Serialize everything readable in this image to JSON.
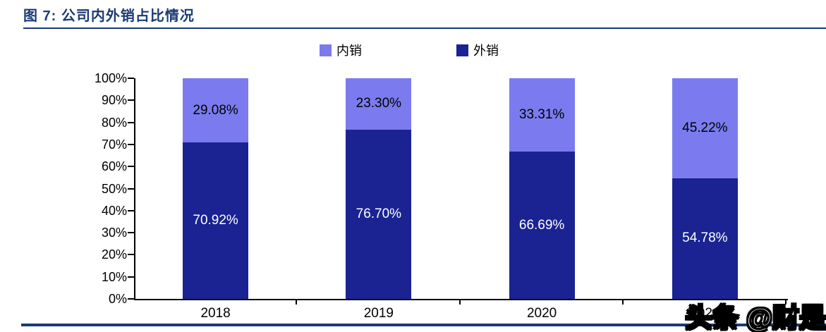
{
  "header": {
    "title": "图 7:  公司内外销占比情况"
  },
  "legend": {
    "items": [
      {
        "label": "内销",
        "color": "#7b7bef"
      },
      {
        "label": "外销",
        "color": "#1a2391"
      }
    ]
  },
  "chart_data": {
    "type": "bar",
    "stacked": true,
    "title": "公司内外销占比情况",
    "categories": [
      "2018",
      "2019",
      "2020",
      "2021"
    ],
    "series": [
      {
        "name": "外销",
        "key": "export",
        "color": "#1a2391",
        "label_color": "#ffffff",
        "values": [
          70.92,
          76.7,
          66.69,
          54.78
        ],
        "labels": [
          "70.92%",
          "76.70%",
          "66.69%",
          "54.78%"
        ]
      },
      {
        "name": "内销",
        "key": "domestic",
        "color": "#7b7bef",
        "label_color": "#000000",
        "values": [
          29.08,
          23.3,
          33.31,
          45.22
        ],
        "labels": [
          "29.08%",
          "23.30%",
          "33.31%",
          "45.22%"
        ]
      }
    ],
    "xlabel": "",
    "ylabel": "",
    "ylim": [
      0,
      100
    ],
    "y_ticks": [
      "0%",
      "10%",
      "20%",
      "30%",
      "40%",
      "50%",
      "60%",
      "70%",
      "80%",
      "90%",
      "100%"
    ],
    "legend_position": "top",
    "grid": "off"
  },
  "watermark": {
    "text": "头条 @财是"
  },
  "accent_color": "#1b3a76"
}
